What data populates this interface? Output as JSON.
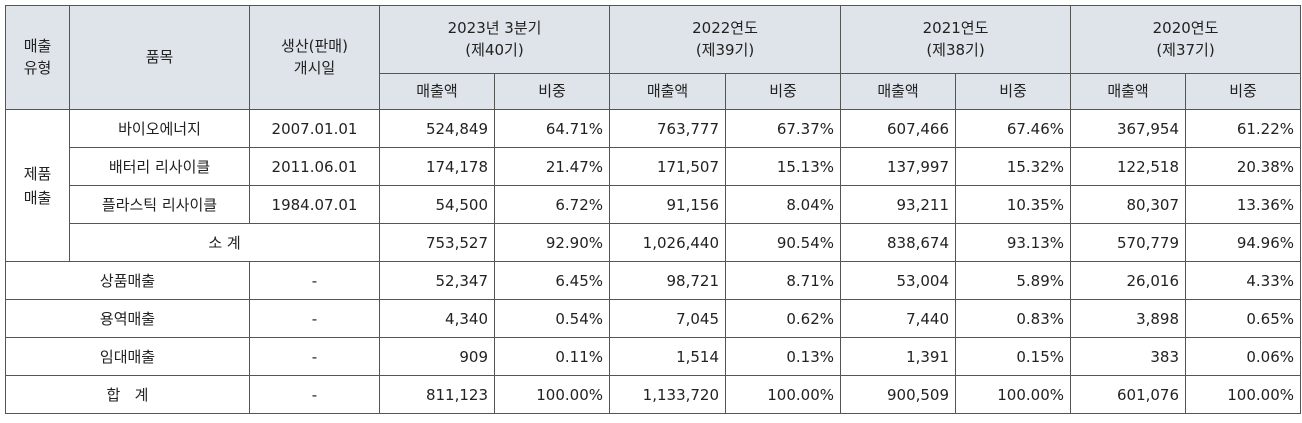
{
  "header": {
    "sales_type": [
      "매출",
      "유형"
    ],
    "item": "품목",
    "start_date": [
      "생산(판매)",
      "개시일"
    ],
    "periods": [
      {
        "line1": "2023년 3분기",
        "line2": "(제40기)"
      },
      {
        "line1": "2022연도",
        "line2": "(제39기)"
      },
      {
        "line1": "2021연도",
        "line2": "(제38기)"
      },
      {
        "line1": "2020연도",
        "line2": "(제37기)"
      }
    ],
    "sub_amount": "매출액",
    "sub_ratio": "비중"
  },
  "product_group": [
    "제품",
    "매출"
  ],
  "rows": [
    {
      "item": "바이오에너지",
      "date": "2007.01.01",
      "values": [
        "524,849",
        "64.71%",
        "763,777",
        "67.37%",
        "607,466",
        "67.46%",
        "367,954",
        "61.22%"
      ]
    },
    {
      "item": "배터리 리사이클",
      "date": "2011.06.01",
      "values": [
        "174,178",
        "21.47%",
        "171,507",
        "15.13%",
        "137,997",
        "15.32%",
        "122,518",
        "20.38%"
      ]
    },
    {
      "item": "플라스틱 리사이클",
      "date": "1984.07.01",
      "values": [
        "54,500",
        "6.72%",
        "91,156",
        "8.04%",
        "93,211",
        "10.35%",
        "80,307",
        "13.36%"
      ]
    },
    {
      "item": "소 계",
      "date": "",
      "values": [
        "753,527",
        "92.90%",
        "1,026,440",
        "90.54%",
        "838,674",
        "93.13%",
        "570,779",
        "94.96%"
      ]
    },
    {
      "item": "상품매출",
      "date": "-",
      "values": [
        "52,347",
        "6.45%",
        "98,721",
        "8.71%",
        "53,004",
        "5.89%",
        "26,016",
        "4.33%"
      ]
    },
    {
      "item": "용역매출",
      "date": "-",
      "values": [
        "4,340",
        "0.54%",
        "7,045",
        "0.62%",
        "7,440",
        "0.83%",
        "3,898",
        "0.65%"
      ]
    },
    {
      "item": "임대매출",
      "date": "-",
      "values": [
        "909",
        "0.11%",
        "1,514",
        "0.13%",
        "1,391",
        "0.15%",
        "383",
        "0.06%"
      ]
    },
    {
      "item": "합   계",
      "date": "-",
      "values": [
        "811,123",
        "100.00%",
        "1,133,720",
        "100.00%",
        "900,509",
        "100.00%",
        "601,076",
        "100.00%"
      ]
    }
  ]
}
